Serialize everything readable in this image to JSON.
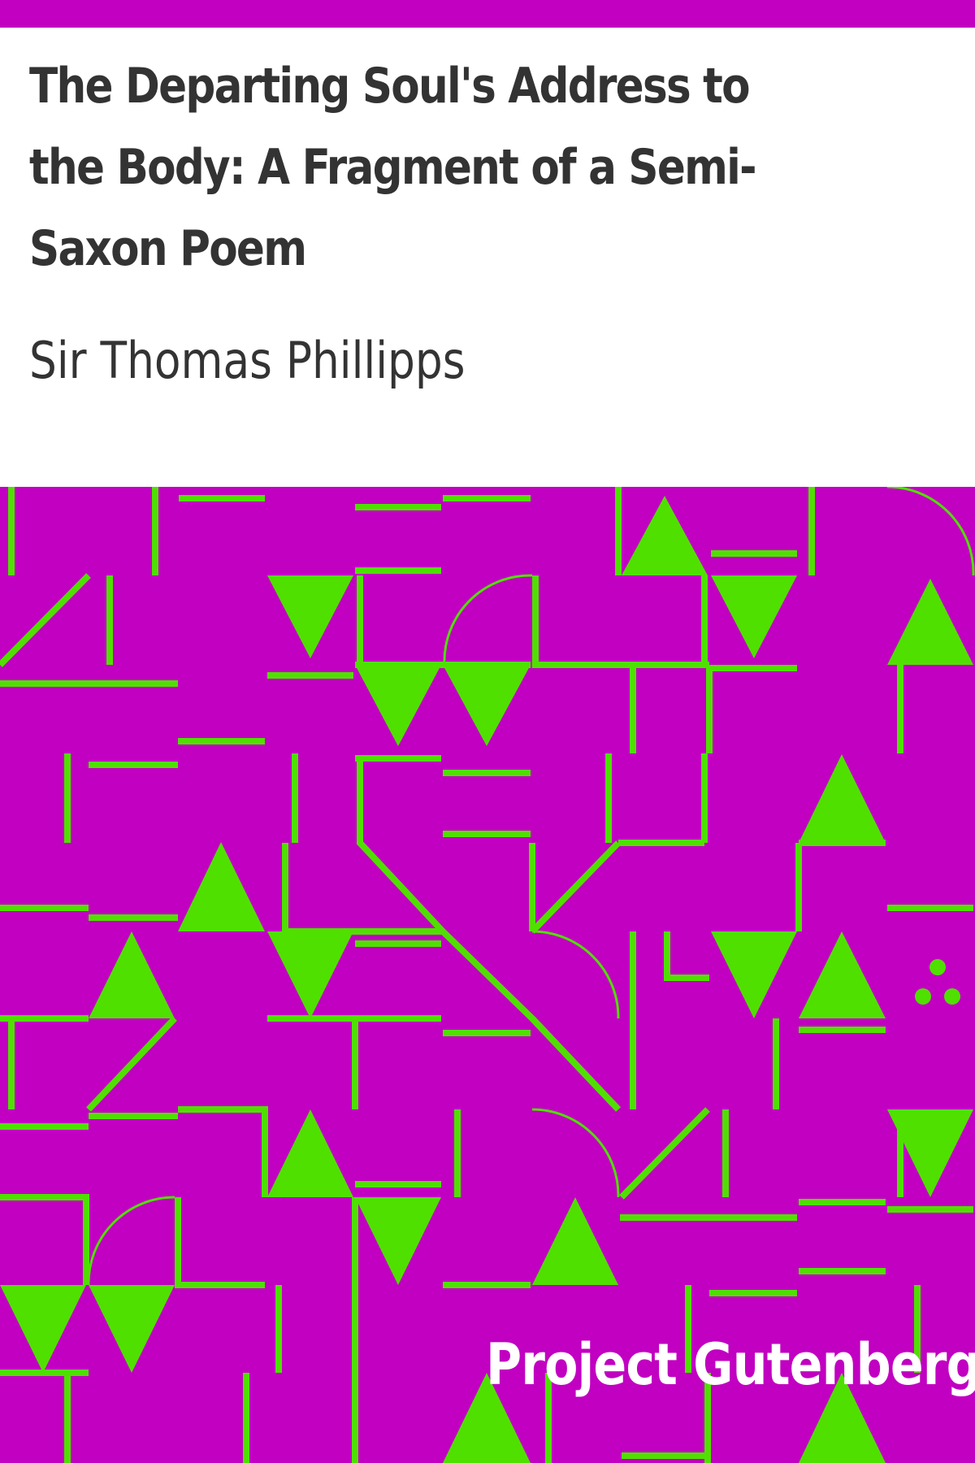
{
  "book": {
    "title": "The Departing Soul's Address to the Body: A Fragment of a Semi-Saxon Poem",
    "author": "Sir Thomas Phillipps",
    "publisher": "Project Gutenberg"
  },
  "colors": {
    "background": "#c100c1",
    "pattern": "#4fe000",
    "text": "#333333",
    "publisher_text": "#ffffff"
  }
}
